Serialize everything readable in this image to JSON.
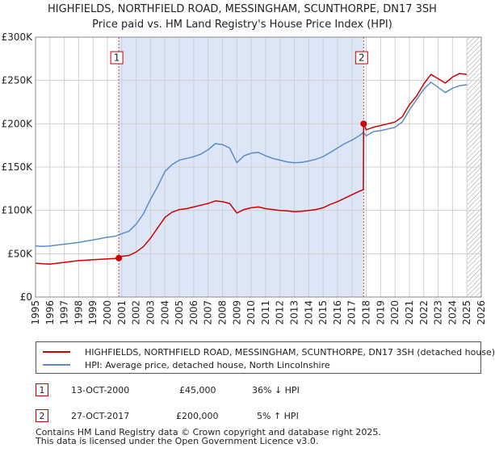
{
  "chart_data": {
    "type": "line",
    "title": "HIGHFIELDS, NORTHFIELD ROAD, MESSINGHAM, SCUNTHORPE, DN17 3SH",
    "subtitle": "Price paid vs. HM Land Registry's House Price Index (HPI)",
    "xlim": [
      1995,
      2026
    ],
    "ylim": [
      0,
      300000
    ],
    "x_ticks": [
      "1995",
      "1996",
      "1997",
      "1998",
      "1999",
      "2000",
      "2001",
      "2002",
      "2003",
      "2004",
      "2005",
      "2006",
      "2007",
      "2008",
      "2009",
      "2010",
      "2011",
      "2012",
      "2013",
      "2014",
      "2015",
      "2016",
      "2017",
      "2018",
      "2019",
      "2020",
      "2021",
      "2022",
      "2023",
      "2024",
      "2025",
      "2026"
    ],
    "y_ticks": [
      {
        "value": 0,
        "label": "£0"
      },
      {
        "value": 50000,
        "label": "£50K"
      },
      {
        "value": 100000,
        "label": "£100K"
      },
      {
        "value": 150000,
        "label": "£150K"
      },
      {
        "value": 200000,
        "label": "£200K"
      },
      {
        "value": 250000,
        "label": "£250K"
      },
      {
        "value": 300000,
        "label": "£300K"
      }
    ],
    "colors": {
      "property": "#cc0000",
      "hpi": "#5b8cc8",
      "shade": "#dde6f6",
      "grid": "#d0d0d0",
      "marker_line": "#cc4444",
      "hatch": "#999999"
    },
    "shaded_range": [
      2000.79,
      2017.82
    ],
    "future_from": 2025.0,
    "series": [
      {
        "name": "HIGHFIELDS, NORTHFIELD ROAD, MESSINGHAM, SCUNTHORPE, DN17 3SH (detached house)",
        "x": [
          1995.0,
          1995.5,
          1996.0,
          1996.5,
          1997.0,
          1997.5,
          1998.0,
          1998.5,
          1999.0,
          1999.5,
          2000.0,
          2000.5,
          2000.79,
          2001.0,
          2001.5,
          2002.0,
          2002.5,
          2003.0,
          2003.5,
          2004.0,
          2004.5,
          2005.0,
          2005.5,
          2006.0,
          2006.5,
          2007.0,
          2007.5,
          2008.0,
          2008.5,
          2009.0,
          2009.5,
          2010.0,
          2010.5,
          2011.0,
          2011.5,
          2012.0,
          2012.5,
          2013.0,
          2013.5,
          2014.0,
          2014.5,
          2015.0,
          2015.5,
          2016.0,
          2016.5,
          2017.0,
          2017.5,
          2017.8,
          2017.82,
          2018.0,
          2018.5,
          2019.0,
          2019.5,
          2020.0,
          2020.5,
          2021.0,
          2021.5,
          2022.0,
          2022.5,
          2023.0,
          2023.5,
          2024.0,
          2024.5,
          2025.0
        ],
        "values": [
          39000,
          38500,
          38000,
          39000,
          40000,
          41000,
          42000,
          42500,
          43000,
          43500,
          44000,
          44500,
          45000,
          47000,
          48000,
          52000,
          58000,
          68000,
          80000,
          92000,
          98000,
          101000,
          102000,
          104000,
          106000,
          108000,
          111000,
          110000,
          108000,
          97000,
          101000,
          103000,
          104000,
          102000,
          101000,
          100000,
          99500,
          98500,
          99000,
          100000,
          101000,
          103000,
          107000,
          110000,
          114000,
          118000,
          122000,
          124000,
          200000,
          193000,
          196000,
          198000,
          200000,
          202000,
          208000,
          222000,
          232000,
          246000,
          257000,
          252000,
          247000,
          254000,
          258000,
          257000
        ]
      },
      {
        "name": "HPI: Average price, detached house, North Lincolnshire",
        "x": [
          1995.0,
          1995.5,
          1996.0,
          1996.5,
          1997.0,
          1997.5,
          1998.0,
          1998.5,
          1999.0,
          1999.5,
          2000.0,
          2000.5,
          2001.0,
          2001.5,
          2002.0,
          2002.5,
          2003.0,
          2003.5,
          2004.0,
          2004.5,
          2005.0,
          2005.5,
          2006.0,
          2006.5,
          2007.0,
          2007.5,
          2008.0,
          2008.5,
          2009.0,
          2009.5,
          2010.0,
          2010.5,
          2011.0,
          2011.5,
          2012.0,
          2012.5,
          2013.0,
          2013.5,
          2014.0,
          2014.5,
          2015.0,
          2015.5,
          2016.0,
          2016.5,
          2017.0,
          2017.5,
          2017.8,
          2018.0,
          2018.5,
          2019.0,
          2019.5,
          2020.0,
          2020.5,
          2021.0,
          2021.5,
          2022.0,
          2022.5,
          2023.0,
          2023.5,
          2024.0,
          2024.5,
          2025.0
        ],
        "values": [
          59000,
          58500,
          59000,
          60000,
          61000,
          62000,
          63000,
          64500,
          66000,
          67500,
          69000,
          70000,
          73000,
          76000,
          84000,
          96000,
          113000,
          128000,
          145000,
          153000,
          158000,
          160000,
          162000,
          165000,
          170000,
          177000,
          176000,
          172000,
          155000,
          163000,
          166000,
          167000,
          163000,
          160000,
          158000,
          156000,
          155000,
          155500,
          157000,
          159000,
          162000,
          167000,
          172000,
          177000,
          181000,
          186000,
          190000,
          186000,
          191000,
          192000,
          194000,
          196000,
          202000,
          216000,
          228000,
          240000,
          248000,
          242000,
          236000,
          241000,
          244000,
          245000
        ]
      }
    ],
    "sales": [
      {
        "id": "1",
        "x": 2000.79,
        "value": 45000
      },
      {
        "id": "2",
        "x": 2017.82,
        "value": 200000
      }
    ]
  },
  "legend": {
    "property_label": "HIGHFIELDS, NORTHFIELD ROAD, MESSINGHAM, SCUNTHORPE, DN17 3SH (detached house)",
    "hpi_label": "HPI: Average price, detached house, North Lincolnshire"
  },
  "sales_table": [
    {
      "id": "1",
      "date": "13-OCT-2000",
      "price": "£45,000",
      "hpi": "36% ↓ HPI"
    },
    {
      "id": "2",
      "date": "27-OCT-2017",
      "price": "£200,000",
      "hpi": "5% ↑ HPI"
    }
  ],
  "footer": {
    "line1": "Contains HM Land Registry data © Crown copyright and database right 2025.",
    "line2": "This data is licensed under the Open Government Licence v3.0."
  }
}
